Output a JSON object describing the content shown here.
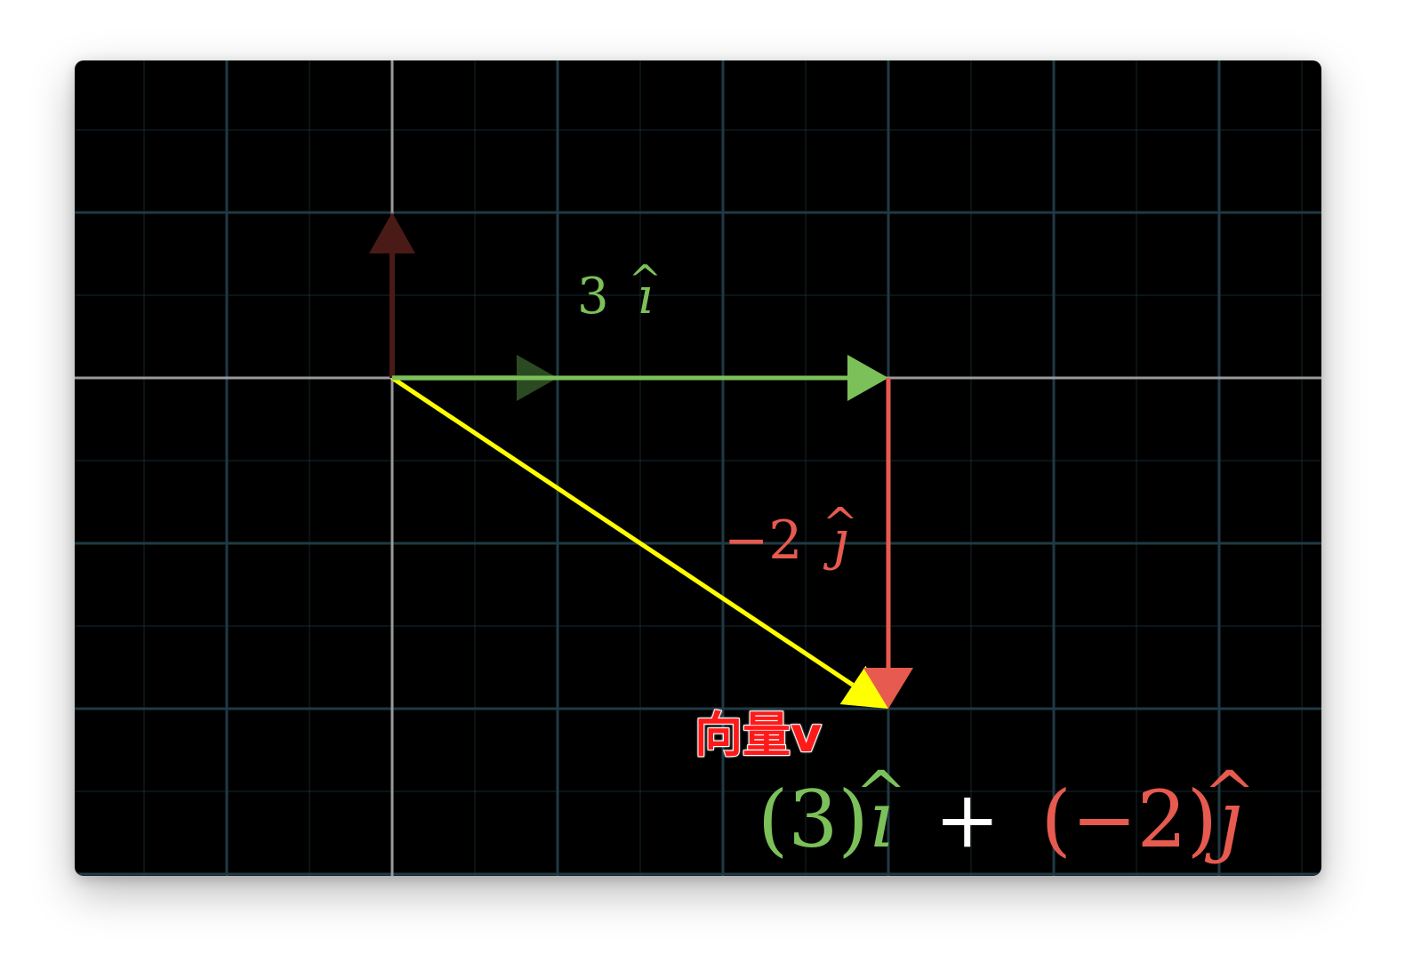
{
  "colors": {
    "background": "#000000",
    "grid": "#1f3a45",
    "axis": "#9a9a9a",
    "i_vector": "#7cc05a",
    "i_vector_dim": "#2b4a22",
    "j_vector": "#e65a4f",
    "j_vector_dim": "#4a1a16",
    "v_vector": "#ffff00",
    "label_v": "#ff1a1a",
    "plus": "#ffffff"
  },
  "vectors": {
    "i_scaled": {
      "x": 3,
      "y": 0
    },
    "j_scaled": {
      "x": 0,
      "y": -2
    },
    "v": {
      "x": 3,
      "y": -2
    }
  },
  "labels": {
    "i_label_coef": "3",
    "i_label_sym": "ı",
    "i_label_hat": "^",
    "j_label_coef": "−2",
    "j_label_sym": "ȷ",
    "j_label_hat": "^",
    "vector_v": "向量v"
  },
  "equation": {
    "term1_open": "(",
    "term1_coef": "3",
    "term1_close": ")",
    "term1_sym": "ı",
    "term1_hat": "^",
    "plus": "+",
    "term2_open": "(",
    "term2_coef": "−2",
    "term2_close": ")",
    "term2_sym": "ȷ",
    "term2_hat": "^"
  }
}
